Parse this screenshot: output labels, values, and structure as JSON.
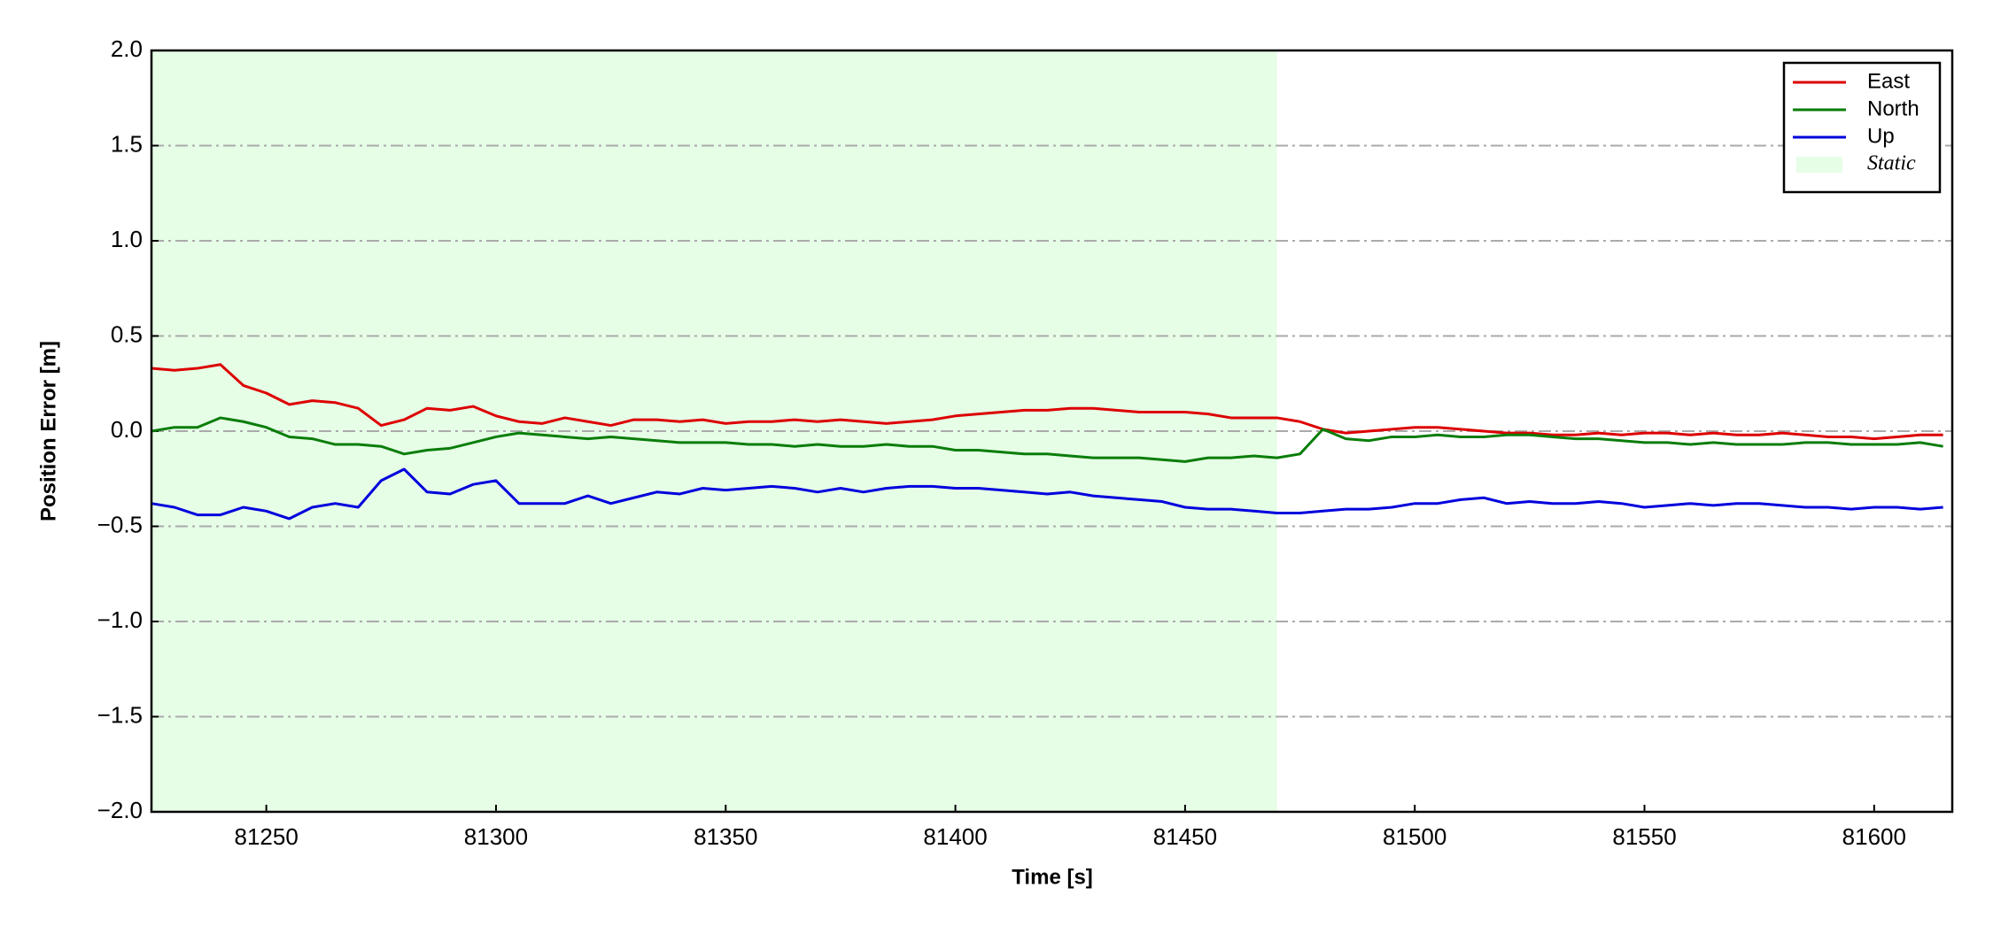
{
  "chart_data": {
    "type": "line",
    "xlabel": "Time [s]",
    "ylabel": "Position Error [m]",
    "x": [
      81225,
      81230,
      81235,
      81240,
      81245,
      81250,
      81255,
      81260,
      81265,
      81270,
      81275,
      81280,
      81285,
      81290,
      81295,
      81300,
      81305,
      81310,
      81315,
      81320,
      81325,
      81330,
      81335,
      81340,
      81345,
      81350,
      81355,
      81360,
      81365,
      81370,
      81375,
      81380,
      81385,
      81390,
      81395,
      81400,
      81405,
      81410,
      81415,
      81420,
      81425,
      81430,
      81435,
      81440,
      81445,
      81450,
      81455,
      81460,
      81465,
      81470,
      81475,
      81480,
      81485,
      81490,
      81495,
      81500,
      81505,
      81510,
      81515,
      81520,
      81525,
      81530,
      81535,
      81540,
      81545,
      81550,
      81555,
      81560,
      81565,
      81570,
      81575,
      81580,
      81585,
      81590,
      81595,
      81600,
      81605,
      81610,
      81615
    ],
    "series": [
      {
        "name": "East",
        "color": "#dd0000",
        "values": [
          0.33,
          0.32,
          0.33,
          0.35,
          0.24,
          0.2,
          0.14,
          0.16,
          0.15,
          0.12,
          0.03,
          0.06,
          0.12,
          0.11,
          0.13,
          0.08,
          0.05,
          0.04,
          0.07,
          0.05,
          0.03,
          0.06,
          0.06,
          0.05,
          0.06,
          0.04,
          0.05,
          0.05,
          0.06,
          0.05,
          0.06,
          0.05,
          0.04,
          0.05,
          0.06,
          0.08,
          0.09,
          0.1,
          0.11,
          0.11,
          0.12,
          0.12,
          0.11,
          0.1,
          0.1,
          0.1,
          0.09,
          0.07,
          0.07,
          0.07,
          0.05,
          0.01,
          -0.01,
          0,
          0.01,
          0.02,
          0.02,
          0.01,
          0,
          -0.01,
          -0.01,
          -0.02,
          -0.02,
          -0.01,
          -0.02,
          -0.01,
          -0.01,
          -0.02,
          -0.01,
          -0.02,
          -0.02,
          -0.01,
          -0.02,
          -0.03,
          -0.03,
          -0.04,
          -0.03,
          -0.02,
          -0.02
        ]
      },
      {
        "name": "North",
        "color": "#0a7d0a",
        "values": [
          0,
          0.02,
          0.02,
          0.07,
          0.05,
          0.02,
          -0.03,
          -0.04,
          -0.07,
          -0.07,
          -0.08,
          -0.12,
          -0.1,
          -0.09,
          -0.06,
          -0.03,
          -0.01,
          -0.02,
          -0.03,
          -0.04,
          -0.03,
          -0.04,
          -0.05,
          -0.06,
          -0.06,
          -0.06,
          -0.07,
          -0.07,
          -0.08,
          -0.07,
          -0.08,
          -0.08,
          -0.07,
          -0.08,
          -0.08,
          -0.1,
          -0.1,
          -0.11,
          -0.12,
          -0.12,
          -0.13,
          -0.14,
          -0.14,
          -0.14,
          -0.15,
          -0.16,
          -0.14,
          -0.14,
          -0.13,
          -0.14,
          -0.12,
          0.01,
          -0.04,
          -0.05,
          -0.03,
          -0.03,
          -0.02,
          -0.03,
          -0.03,
          -0.02,
          -0.02,
          -0.03,
          -0.04,
          -0.04,
          -0.05,
          -0.06,
          -0.06,
          -0.07,
          -0.06,
          -0.07,
          -0.07,
          -0.07,
          -0.06,
          -0.06,
          -0.07,
          -0.07,
          -0.07,
          -0.06,
          -0.08
        ]
      },
      {
        "name": "Up",
        "color": "#0000dd",
        "values": [
          -0.38,
          -0.4,
          -0.44,
          -0.44,
          -0.4,
          -0.42,
          -0.46,
          -0.4,
          -0.38,
          -0.4,
          -0.26,
          -0.2,
          -0.32,
          -0.33,
          -0.28,
          -0.26,
          -0.38,
          -0.38,
          -0.38,
          -0.34,
          -0.38,
          -0.35,
          -0.32,
          -0.33,
          -0.3,
          -0.31,
          -0.3,
          -0.29,
          -0.3,
          -0.32,
          -0.3,
          -0.32,
          -0.3,
          -0.29,
          -0.29,
          -0.3,
          -0.3,
          -0.31,
          -0.32,
          -0.33,
          -0.32,
          -0.34,
          -0.35,
          -0.36,
          -0.37,
          -0.4,
          -0.41,
          -0.41,
          -0.42,
          -0.43,
          -0.43,
          -0.42,
          -0.41,
          -0.41,
          -0.4,
          -0.38,
          -0.38,
          -0.36,
          -0.35,
          -0.38,
          -0.37,
          -0.38,
          -0.38,
          -0.37,
          -0.38,
          -0.4,
          -0.39,
          -0.38,
          -0.39,
          -0.38,
          -0.38,
          -0.39,
          -0.4,
          -0.4,
          -0.41,
          -0.4,
          -0.4,
          -0.41,
          -0.4
        ]
      }
    ],
    "shaded_region": {
      "name": "Static",
      "color": "#e6fde6",
      "x": [
        81225,
        81470
      ]
    },
    "xlim": [
      81225,
      81617
    ],
    "ylim": [
      -2.0,
      2.0
    ],
    "xticks": [
      81250,
      81300,
      81350,
      81400,
      81450,
      81500,
      81550,
      81600
    ],
    "yticks": [
      {
        "value": -2.0,
        "label": "−2.0"
      },
      {
        "value": -1.5,
        "label": "−1.5"
      },
      {
        "value": -1.0,
        "label": "−1.0"
      },
      {
        "value": -0.5,
        "label": "−0.5"
      },
      {
        "value": 0.0,
        "label": "0.0"
      },
      {
        "value": 0.5,
        "label": "0.5"
      },
      {
        "value": 1.0,
        "label": "1.0"
      },
      {
        "value": 1.5,
        "label": "1.5"
      },
      {
        "value": 2.0,
        "label": "2.0"
      }
    ],
    "grid": true,
    "legend_position": "upper right"
  }
}
